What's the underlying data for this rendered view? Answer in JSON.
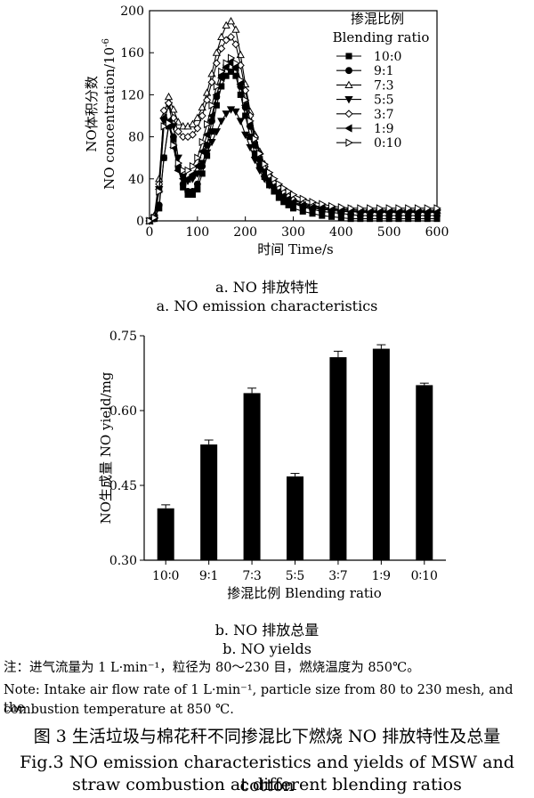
{
  "chart_data": [
    {
      "type": "line",
      "panel_label_zh": "a. NO 排放特性",
      "panel_label_en": "a. NO emission characteristics",
      "xlabel": "时间 Time/s",
      "ylabel_zh": "NO体积分数",
      "ylabel_en": "NO concentration/10",
      "ylabel_sup": "-6",
      "xlim": [
        0,
        600
      ],
      "ylim": [
        0,
        200
      ],
      "xticks": [
        0,
        100,
        200,
        300,
        400,
        500,
        600
      ],
      "yticks": [
        0,
        40,
        80,
        120,
        160,
        200
      ],
      "grid": false,
      "legend_position": "top-right",
      "legend_title_zh": "掺混比例",
      "legend_title_en": "Blending ratio",
      "x": [
        0,
        10,
        20,
        30,
        40,
        50,
        60,
        70,
        80,
        90,
        100,
        110,
        120,
        130,
        140,
        150,
        160,
        170,
        180,
        190,
        200,
        210,
        220,
        230,
        240,
        250,
        260,
        270,
        280,
        290,
        300,
        320,
        340,
        360,
        380,
        400,
        420,
        440,
        460,
        480,
        500,
        520,
        540,
        560,
        580,
        600
      ],
      "series": [
        {
          "name": "10:0",
          "marker": "square",
          "values": [
            0,
            2,
            12,
            60,
            90,
            78,
            50,
            32,
            25,
            25,
            30,
            45,
            62,
            85,
            110,
            128,
            138,
            142,
            138,
            120,
            100,
            80,
            64,
            52,
            42,
            34,
            28,
            22,
            18,
            15,
            12,
            9,
            7,
            5,
            4,
            3,
            2,
            2,
            2,
            2,
            2,
            2,
            2,
            2,
            2,
            2
          ]
        },
        {
          "name": "9:1",
          "marker": "circle",
          "values": [
            0,
            2,
            15,
            60,
            92,
            80,
            52,
            35,
            28,
            28,
            35,
            52,
            72,
            95,
            118,
            138,
            148,
            152,
            146,
            128,
            108,
            90,
            72,
            58,
            48,
            40,
            33,
            28,
            24,
            20,
            17,
            13,
            11,
            9,
            8,
            7,
            6,
            5,
            5,
            5,
            5,
            5,
            5,
            5,
            5,
            5
          ]
        },
        {
          "name": "7:3",
          "marker": "triangle-up",
          "values": [
            0,
            5,
            40,
            100,
            118,
            106,
            94,
            90,
            90,
            92,
            98,
            108,
            122,
            140,
            160,
            175,
            186,
            190,
            182,
            158,
            130,
            104,
            82,
            66,
            54,
            45,
            38,
            32,
            28,
            24,
            21,
            17,
            15,
            13,
            12,
            11,
            11,
            10,
            10,
            10,
            10,
            10,
            10,
            10,
            10,
            10
          ]
        },
        {
          "name": "5:5",
          "marker": "triangle-down",
          "values": [
            0,
            3,
            30,
            95,
            110,
            90,
            60,
            42,
            38,
            40,
            45,
            55,
            65,
            75,
            85,
            95,
            102,
            106,
            104,
            95,
            82,
            70,
            58,
            48,
            40,
            34,
            29,
            25,
            22,
            19,
            17,
            14,
            12,
            11,
            10,
            9,
            9,
            8,
            8,
            8,
            8,
            8,
            8,
            8,
            8,
            8
          ]
        },
        {
          "name": "3:7",
          "marker": "diamond",
          "values": [
            0,
            4,
            35,
            105,
            112,
            98,
            85,
            80,
            80,
            82,
            88,
            100,
            115,
            132,
            150,
            164,
            172,
            175,
            168,
            148,
            124,
            100,
            80,
            64,
            52,
            43,
            36,
            31,
            27,
            23,
            20,
            16,
            14,
            13,
            12,
            11,
            10,
            10,
            10,
            10,
            10,
            10,
            10,
            10,
            10,
            10
          ]
        },
        {
          "name": "1:9",
          "marker": "triangle-left",
          "values": [
            0,
            3,
            30,
            98,
            95,
            70,
            48,
            40,
            40,
            44,
            52,
            66,
            82,
            100,
            120,
            136,
            146,
            150,
            146,
            130,
            110,
            90,
            72,
            58,
            47,
            39,
            33,
            28,
            24,
            21,
            18,
            15,
            13,
            12,
            11,
            10,
            9,
            9,
            9,
            9,
            9,
            9,
            9,
            9,
            9,
            9
          ]
        },
        {
          "name": "0:10",
          "marker": "triangle-right",
          "values": [
            0,
            3,
            28,
            90,
            93,
            72,
            55,
            48,
            48,
            52,
            60,
            75,
            92,
            110,
            128,
            142,
            150,
            155,
            150,
            134,
            115,
            95,
            78,
            64,
            54,
            46,
            40,
            35,
            31,
            28,
            25,
            21,
            18,
            16,
            14,
            13,
            12,
            12,
            12,
            12,
            12,
            12,
            12,
            12,
            12,
            12
          ]
        }
      ]
    },
    {
      "type": "bar",
      "panel_label_zh": "b. NO 排放总量",
      "panel_label_en": "b. NO yields",
      "xlabel": "掺混比例 Blending ratio",
      "ylabel": "NO生成量  NO yield/mg",
      "ylim": [
        0.3,
        0.75
      ],
      "yticks": [
        "0.30",
        "0.45",
        "0.60",
        "0.75"
      ],
      "categories": [
        "10∶0",
        "9∶1",
        "7∶3",
        "5∶5",
        "3∶7",
        "1∶9",
        "0∶10"
      ],
      "values": [
        0.404,
        0.532,
        0.635,
        0.468,
        0.707,
        0.724,
        0.651
      ],
      "errors": [
        0.007,
        0.009,
        0.01,
        0.006,
        0.012,
        0.008,
        0.004
      ],
      "grid": false
    }
  ],
  "note": {
    "line1": "注：进气流量为 1 L·min⁻¹，粒径为 80～230 目，燃烧温度为 850℃。",
    "line2": "Note: Intake air flow rate of 1 L·min⁻¹, particle size from 80 to 230 mesh, and the",
    "line3": "combustion temperature at 850 ℃."
  },
  "figure_caption": {
    "zh": "图 3    生活垃圾与棉花秆不同掺混比下燃烧 NO 排放特性及总量",
    "en_line1": "Fig.3    NO emission characteristics and yields of MSW and cotton",
    "en_line2": "straw combustion at different blending ratios"
  }
}
